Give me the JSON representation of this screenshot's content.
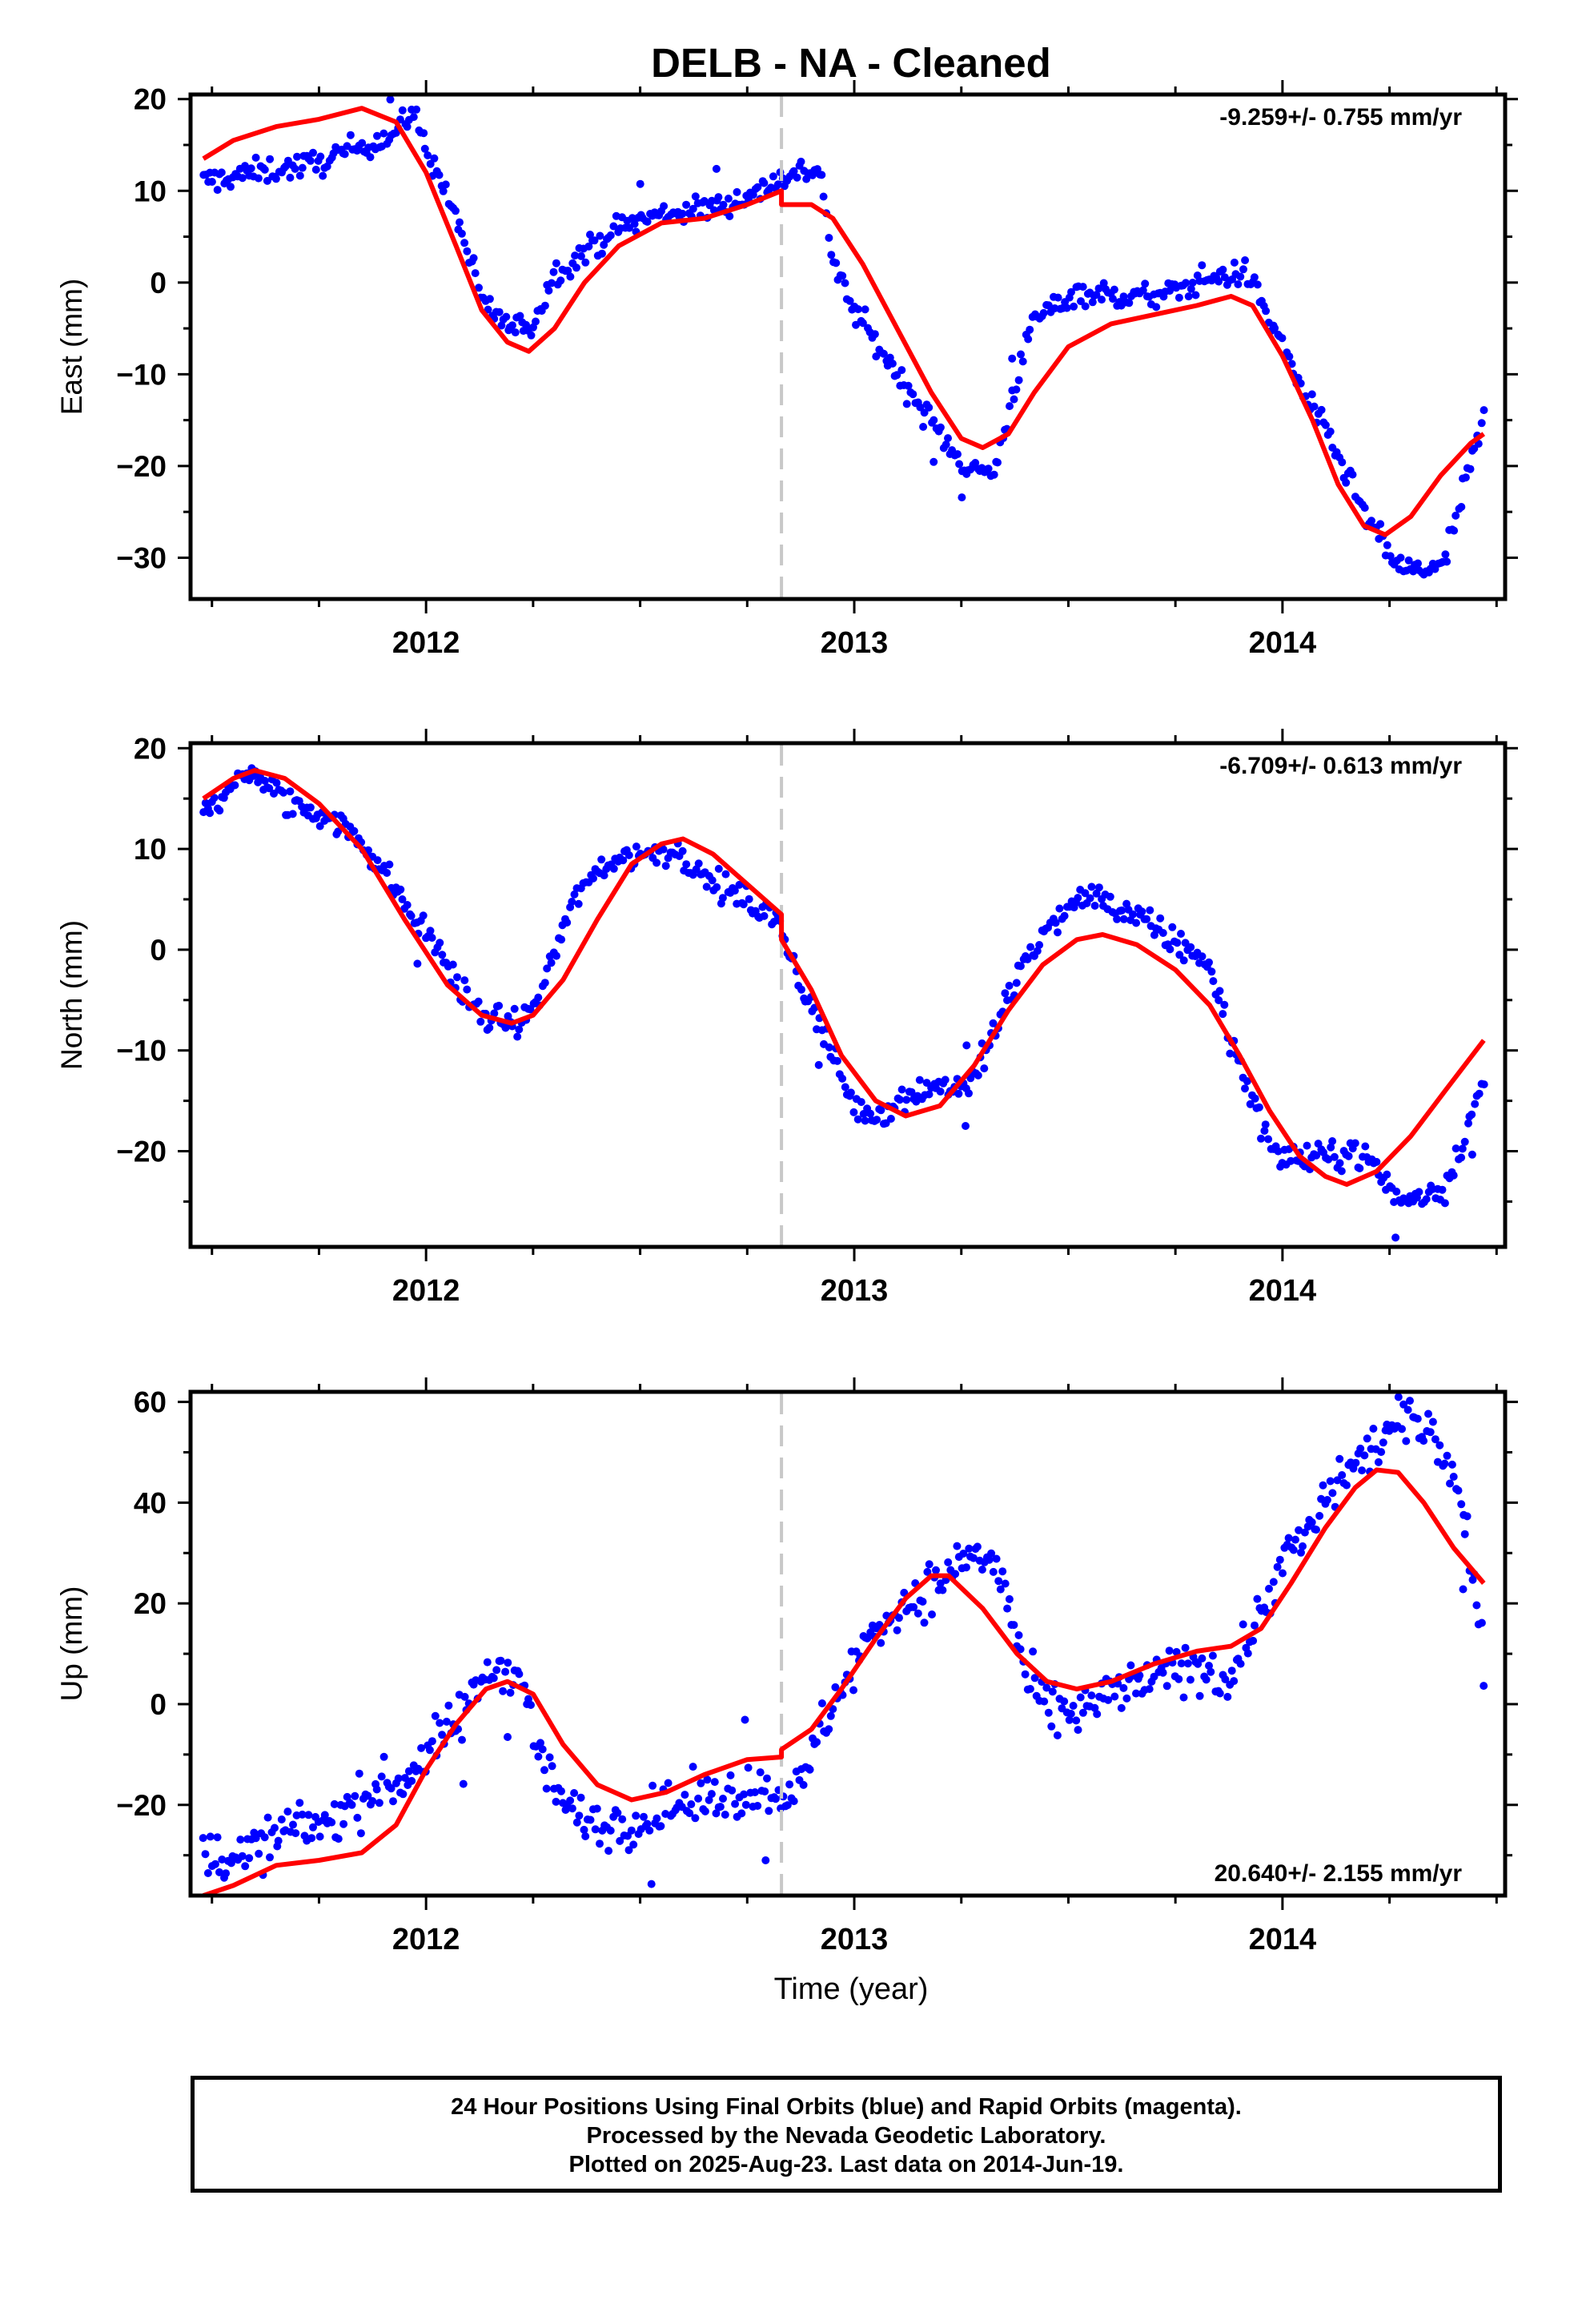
{
  "title": "DELB  - NA - Cleaned",
  "xlabel": "Time (year)",
  "footer": {
    "line1": "24 Hour Positions Using Final Orbits (blue) and Rapid Orbits (magenta).",
    "line2": "Processed by the Nevada Geodetic Laboratory.",
    "line3": "Plotted on 2025-Aug-23. Last data on 2014-Jun-19."
  },
  "colors": {
    "data": "#0000ff",
    "fit": "#ff0000",
    "break_line": "#c8c8c8",
    "axis": "#000000"
  },
  "chart_data": [
    {
      "type": "scatter",
      "ylabel": "East (mm)",
      "rate_label": "-9.259+/- 0.755 mm/yr",
      "rate_position": "top-right",
      "xlim": [
        2011.45,
        2014.52
      ],
      "ylim": [
        -34.5,
        20.5
      ],
      "xticks": [
        2012,
        2013,
        2014
      ],
      "yticks": [
        -30,
        -20,
        -10,
        0,
        10,
        20
      ],
      "break_epoch": 2012.83,
      "observed_anchors": [
        [
          2011.48,
          11.0
        ],
        [
          2011.6,
          12.0
        ],
        [
          2011.75,
          13.0
        ],
        [
          2011.85,
          15.0
        ],
        [
          2011.92,
          16.0
        ],
        [
          2011.97,
          18.5
        ],
        [
          2012.02,
          12.5
        ],
        [
          2012.08,
          6.0
        ],
        [
          2012.13,
          -2.0
        ],
        [
          2012.2,
          -5.0
        ],
        [
          2012.25,
          -4.5
        ],
        [
          2012.3,
          1.0
        ],
        [
          2012.36,
          3.0
        ],
        [
          2012.45,
          6.0
        ],
        [
          2012.55,
          7.5
        ],
        [
          2012.65,
          8.0
        ],
        [
          2012.76,
          9.5
        ],
        [
          2012.83,
          11.5
        ],
        [
          2012.92,
          12.5
        ],
        [
          2012.95,
          2.0
        ],
        [
          2013.0,
          -3.0
        ],
        [
          2013.1,
          -10.0
        ],
        [
          2013.2,
          -16.5
        ],
        [
          2013.27,
          -20.5
        ],
        [
          2013.33,
          -20.5
        ],
        [
          2013.37,
          -12.0
        ],
        [
          2013.42,
          -4.0
        ],
        [
          2013.52,
          -1.0
        ],
        [
          2013.62,
          -1.5
        ],
        [
          2013.72,
          -1.5
        ],
        [
          2013.82,
          0.5
        ],
        [
          2013.92,
          1.0
        ],
        [
          2013.97,
          -4.0
        ],
        [
          2014.05,
          -12.0
        ],
        [
          2014.12,
          -18.0
        ],
        [
          2014.2,
          -26.0
        ],
        [
          2014.27,
          -31.0
        ],
        [
          2014.33,
          -31.5
        ],
        [
          2014.38,
          -30.5
        ],
        [
          2014.42,
          -23.0
        ],
        [
          2014.47,
          -15.0
        ]
      ],
      "noise_mm": 1.0,
      "fit_curve": [
        [
          2011.48,
          13.5
        ],
        [
          2011.55,
          15.5
        ],
        [
          2011.65,
          17.0
        ],
        [
          2011.75,
          17.8
        ],
        [
          2011.85,
          19.0
        ],
        [
          2011.93,
          17.5
        ],
        [
          2012.0,
          12.0
        ],
        [
          2012.07,
          4.0
        ],
        [
          2012.13,
          -3.0
        ],
        [
          2012.19,
          -6.5
        ],
        [
          2012.24,
          -7.5
        ],
        [
          2012.3,
          -5.0
        ],
        [
          2012.37,
          0.0
        ],
        [
          2012.45,
          4.0
        ],
        [
          2012.55,
          6.5
        ],
        [
          2012.65,
          7.0
        ],
        [
          2012.75,
          8.5
        ],
        [
          2012.83,
          10.0
        ],
        [
          2012.83,
          8.5
        ],
        [
          2012.9,
          8.5
        ],
        [
          2012.95,
          7.0
        ],
        [
          2013.02,
          2.0
        ],
        [
          2013.1,
          -5.0
        ],
        [
          2013.18,
          -12.0
        ],
        [
          2013.25,
          -17.0
        ],
        [
          2013.3,
          -18.0
        ],
        [
          2013.36,
          -16.5
        ],
        [
          2013.42,
          -12.0
        ],
        [
          2013.5,
          -7.0
        ],
        [
          2013.6,
          -4.5
        ],
        [
          2013.7,
          -3.5
        ],
        [
          2013.8,
          -2.5
        ],
        [
          2013.88,
          -1.5
        ],
        [
          2013.93,
          -2.5
        ],
        [
          2014.0,
          -8.0
        ],
        [
          2014.07,
          -15.0
        ],
        [
          2014.13,
          -22.0
        ],
        [
          2014.19,
          -26.5
        ],
        [
          2014.24,
          -27.5
        ],
        [
          2014.3,
          -25.5
        ],
        [
          2014.37,
          -21.0
        ],
        [
          2014.44,
          -17.5
        ],
        [
          2014.47,
          -16.5
        ]
      ]
    },
    {
      "type": "scatter",
      "ylabel": "North (mm)",
      "rate_label": "-6.709+/- 0.613 mm/yr",
      "rate_position": "top-right",
      "xlim": [
        2011.45,
        2014.52
      ],
      "ylim": [
        -29.5,
        20.5
      ],
      "xticks": [
        2012,
        2013,
        2014
      ],
      "yticks": [
        -20,
        -10,
        0,
        10,
        20
      ],
      "break_epoch": 2012.83,
      "observed_anchors": [
        [
          2011.48,
          14.0
        ],
        [
          2011.56,
          16.5
        ],
        [
          2011.6,
          17.5
        ],
        [
          2011.67,
          14.5
        ],
        [
          2011.75,
          13.5
        ],
        [
          2011.82,
          12.0
        ],
        [
          2011.9,
          8.0
        ],
        [
          2011.97,
          3.0
        ],
        [
          2012.02,
          1.0
        ],
        [
          2012.06,
          -2.5
        ],
        [
          2012.1,
          -5.0
        ],
        [
          2012.15,
          -7.0
        ],
        [
          2012.22,
          -7.5
        ],
        [
          2012.26,
          -5.0
        ],
        [
          2012.31,
          1.0
        ],
        [
          2012.36,
          6.0
        ],
        [
          2012.42,
          8.5
        ],
        [
          2012.5,
          9.5
        ],
        [
          2012.58,
          10.0
        ],
        [
          2012.65,
          7.0
        ],
        [
          2012.72,
          5.5
        ],
        [
          2012.8,
          3.5
        ],
        [
          2012.83,
          2.0
        ],
        [
          2012.88,
          -4.0
        ],
        [
          2012.95,
          -10.5
        ],
        [
          2013.0,
          -15.5
        ],
        [
          2013.05,
          -16.5
        ],
        [
          2013.12,
          -14.5
        ],
        [
          2013.2,
          -13.5
        ],
        [
          2013.27,
          -13.5
        ],
        [
          2013.33,
          -8.0
        ],
        [
          2013.4,
          -1.0
        ],
        [
          2013.47,
          3.0
        ],
        [
          2013.55,
          5.5
        ],
        [
          2013.62,
          4.0
        ],
        [
          2013.7,
          2.0
        ],
        [
          2013.78,
          0.0
        ],
        [
          2013.83,
          -1.5
        ],
        [
          2013.88,
          -9.0
        ],
        [
          2013.93,
          -15.0
        ],
        [
          2013.98,
          -20.0
        ],
        [
          2014.05,
          -21.0
        ],
        [
          2014.1,
          -20.5
        ],
        [
          2014.17,
          -20.0
        ],
        [
          2014.22,
          -21.5
        ],
        [
          2014.27,
          -25.0
        ],
        [
          2014.32,
          -24.5
        ],
        [
          2014.38,
          -23.5
        ],
        [
          2014.43,
          -18.0
        ],
        [
          2014.47,
          -13.0
        ]
      ],
      "noise_mm": 1.0,
      "fit_curve": [
        [
          2011.48,
          15.0
        ],
        [
          2011.55,
          17.0
        ],
        [
          2011.6,
          17.8
        ],
        [
          2011.67,
          17.0
        ],
        [
          2011.75,
          14.5
        ],
        [
          2011.85,
          10.0
        ],
        [
          2011.95,
          3.0
        ],
        [
          2012.05,
          -3.5
        ],
        [
          2012.13,
          -6.5
        ],
        [
          2012.2,
          -7.3
        ],
        [
          2012.25,
          -6.5
        ],
        [
          2012.32,
          -3.0
        ],
        [
          2012.4,
          3.0
        ],
        [
          2012.48,
          8.5
        ],
        [
          2012.55,
          10.5
        ],
        [
          2012.6,
          11.0
        ],
        [
          2012.67,
          9.5
        ],
        [
          2012.75,
          6.5
        ],
        [
          2012.83,
          3.5
        ],
        [
          2012.83,
          1.0
        ],
        [
          2012.9,
          -4.0
        ],
        [
          2012.97,
          -10.5
        ],
        [
          2013.05,
          -15.0
        ],
        [
          2013.12,
          -16.5
        ],
        [
          2013.2,
          -15.5
        ],
        [
          2013.28,
          -11.5
        ],
        [
          2013.36,
          -6.0
        ],
        [
          2013.44,
          -1.5
        ],
        [
          2013.52,
          1.0
        ],
        [
          2013.58,
          1.5
        ],
        [
          2013.66,
          0.5
        ],
        [
          2013.75,
          -2.0
        ],
        [
          2013.83,
          -5.5
        ],
        [
          2013.9,
          -10.5
        ],
        [
          2013.97,
          -16.0
        ],
        [
          2014.04,
          -20.5
        ],
        [
          2014.1,
          -22.5
        ],
        [
          2014.15,
          -23.3
        ],
        [
          2014.22,
          -22.0
        ],
        [
          2014.3,
          -18.5
        ],
        [
          2014.38,
          -14.0
        ],
        [
          2014.47,
          -9.0
        ]
      ]
    },
    {
      "type": "scatter",
      "ylabel": "Up (mm)",
      "rate_label": "20.640+/- 2.155 mm/yr",
      "rate_position": "bottom-right",
      "xlim": [
        2011.45,
        2014.52
      ],
      "ylim": [
        -38,
        62
      ],
      "xticks": [
        2012,
        2013,
        2014
      ],
      "yticks": [
        -20,
        0,
        20,
        40,
        60
      ],
      "break_epoch": 2012.83,
      "observed_anchors": [
        [
          2011.48,
          -30.0
        ],
        [
          2011.58,
          -30.0
        ],
        [
          2011.68,
          -25.0
        ],
        [
          2011.78,
          -23.0
        ],
        [
          2011.88,
          -17.0
        ],
        [
          2011.95,
          -15.0
        ],
        [
          2012.02,
          -8.0
        ],
        [
          2012.08,
          -3.0
        ],
        [
          2012.13,
          5.0
        ],
        [
          2012.18,
          8.0
        ],
        [
          2012.22,
          6.0
        ],
        [
          2012.26,
          -8.0
        ],
        [
          2012.3,
          -17.0
        ],
        [
          2012.36,
          -23.0
        ],
        [
          2012.45,
          -24.0
        ],
        [
          2012.55,
          -21.0
        ],
        [
          2012.65,
          -19.0
        ],
        [
          2012.75,
          -17.0
        ],
        [
          2012.83,
          -17.0
        ],
        [
          2012.88,
          -17.0
        ],
        [
          2012.92,
          -5.0
        ],
        [
          2012.98,
          5.0
        ],
        [
          2013.05,
          15.0
        ],
        [
          2013.12,
          20.0
        ],
        [
          2013.2,
          24.0
        ],
        [
          2013.27,
          30.0
        ],
        [
          2013.33,
          28.0
        ],
        [
          2013.36,
          20.0
        ],
        [
          2013.4,
          5.0
        ],
        [
          2013.46,
          -2.0
        ],
        [
          2013.52,
          -2.0
        ],
        [
          2013.6,
          2.0
        ],
        [
          2013.7,
          5.0
        ],
        [
          2013.8,
          8.0
        ],
        [
          2013.88,
          5.0
        ],
        [
          2013.93,
          15.0
        ],
        [
          2014.0,
          28.0
        ],
        [
          2014.07,
          35.0
        ],
        [
          2014.13,
          45.0
        ],
        [
          2014.2,
          50.0
        ],
        [
          2014.28,
          56.0
        ],
        [
          2014.35,
          55.0
        ],
        [
          2014.4,
          45.0
        ],
        [
          2014.44,
          30.0
        ],
        [
          2014.46,
          15.0
        ],
        [
          2014.47,
          8.0
        ]
      ],
      "noise_mm": 3.5,
      "fit_curve": [
        [
          2011.48,
          -38.0
        ],
        [
          2011.55,
          -36.0
        ],
        [
          2011.65,
          -32.0
        ],
        [
          2011.75,
          -31.0
        ],
        [
          2011.85,
          -29.5
        ],
        [
          2011.93,
          -24.0
        ],
        [
          2012.0,
          -13.0
        ],
        [
          2012.07,
          -4.0
        ],
        [
          2012.14,
          3.0
        ],
        [
          2012.19,
          4.5
        ],
        [
          2012.25,
          2.0
        ],
        [
          2012.32,
          -8.0
        ],
        [
          2012.4,
          -16.0
        ],
        [
          2012.48,
          -19.0
        ],
        [
          2012.56,
          -17.5
        ],
        [
          2012.65,
          -14.0
        ],
        [
          2012.75,
          -11.0
        ],
        [
          2012.83,
          -10.5
        ],
        [
          2012.83,
          -9.0
        ],
        [
          2012.9,
          -5.0
        ],
        [
          2012.97,
          3.0
        ],
        [
          2013.05,
          13.0
        ],
        [
          2013.12,
          21.0
        ],
        [
          2013.18,
          25.5
        ],
        [
          2013.22,
          25.5
        ],
        [
          2013.3,
          19.0
        ],
        [
          2013.38,
          10.0
        ],
        [
          2013.45,
          4.5
        ],
        [
          2013.52,
          3.0
        ],
        [
          2013.6,
          4.5
        ],
        [
          2013.7,
          8.0
        ],
        [
          2013.8,
          10.5
        ],
        [
          2013.88,
          11.5
        ],
        [
          2013.95,
          15.0
        ],
        [
          2014.02,
          24.0
        ],
        [
          2014.1,
          35.0
        ],
        [
          2014.17,
          43.0
        ],
        [
          2014.22,
          46.5
        ],
        [
          2014.27,
          46.0
        ],
        [
          2014.33,
          40.0
        ],
        [
          2014.4,
          31.0
        ],
        [
          2014.47,
          24.0
        ]
      ]
    }
  ]
}
